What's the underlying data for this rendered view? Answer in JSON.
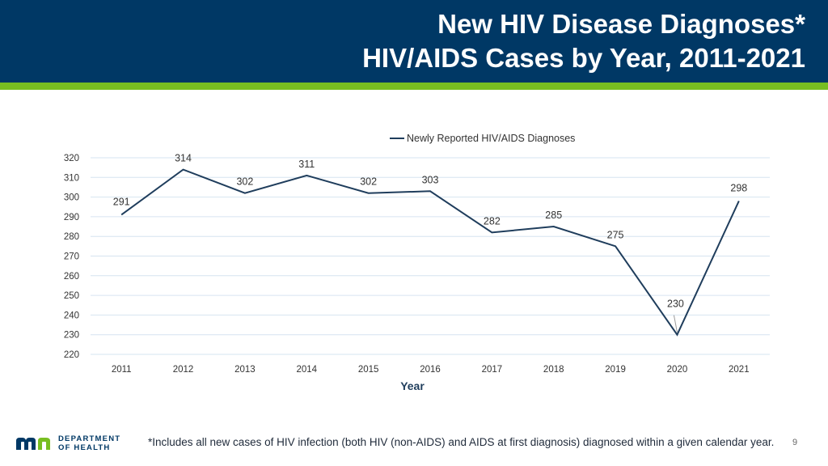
{
  "header": {
    "title_line1": "New HIV Disease Diagnoses*",
    "title_line2": "HIV/AIDS Cases by Year, 2011-2021"
  },
  "colors": {
    "navy": "#003865",
    "green": "#78be21",
    "line": "#1f3d5c",
    "grid": "#d6e4f0"
  },
  "chart_data": {
    "type": "line",
    "title": "",
    "xlabel": "Year",
    "ylabel": "",
    "ylim": [
      220,
      320
    ],
    "yticks": [
      220,
      230,
      240,
      250,
      260,
      270,
      280,
      290,
      300,
      310,
      320
    ],
    "legend": "top-center",
    "grid": true,
    "categories": [
      "2011",
      "2012",
      "2013",
      "2014",
      "2015",
      "2016",
      "2017",
      "2018",
      "2019",
      "2020",
      "2021"
    ],
    "series": [
      {
        "name": "Newly Reported HIV/AIDS Diagnoses",
        "values": [
          291,
          314,
          302,
          311,
          302,
          303,
          282,
          285,
          275,
          230,
          298
        ]
      }
    ]
  },
  "footer": {
    "footnote": "*Includes all new cases of HIV infection (both HIV (non-AIDS) and AIDS at first diagnosis) diagnosed within a given calendar year.",
    "page_number": "9",
    "logo_line1": "DEPARTMENT",
    "logo_line2": "OF HEALTH"
  }
}
